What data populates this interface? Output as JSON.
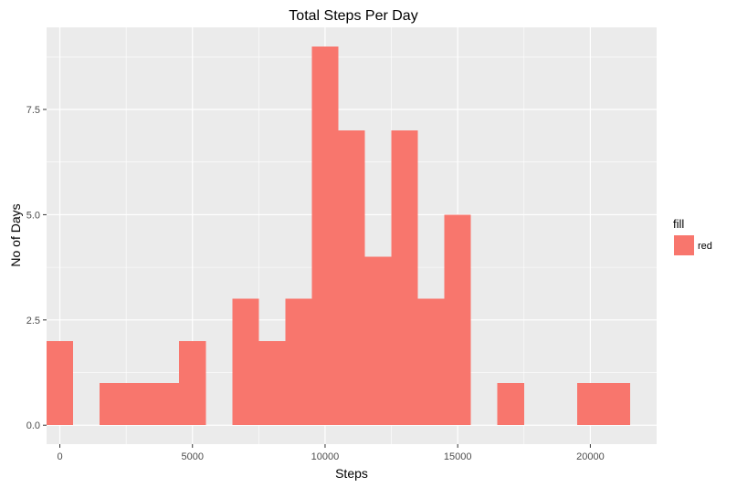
{
  "chart_data": {
    "type": "bar",
    "title": "Total Steps Per Day",
    "xlabel": "Steps",
    "ylabel": "No of Days",
    "bin_width": 1000,
    "bins": [
      {
        "x": 0,
        "count": 2
      },
      {
        "x": 2000,
        "count": 1
      },
      {
        "x": 3000,
        "count": 1
      },
      {
        "x": 4000,
        "count": 1
      },
      {
        "x": 5000,
        "count": 2
      },
      {
        "x": 7000,
        "count": 3
      },
      {
        "x": 8000,
        "count": 2
      },
      {
        "x": 9000,
        "count": 3
      },
      {
        "x": 10000,
        "count": 9
      },
      {
        "x": 11000,
        "count": 7
      },
      {
        "x": 12000,
        "count": 4
      },
      {
        "x": 13000,
        "count": 7
      },
      {
        "x": 14000,
        "count": 3
      },
      {
        "x": 15000,
        "count": 5
      },
      {
        "x": 17000,
        "count": 1
      },
      {
        "x": 20000,
        "count": 1
      },
      {
        "x": 21000,
        "count": 1
      }
    ],
    "xlim": [
      -500,
      22500
    ],
    "ylim": [
      -0.45,
      9.45
    ],
    "x_ticks": [
      0,
      5000,
      10000,
      15000,
      20000
    ],
    "x_tick_labels": [
      "0",
      "5000",
      "10000",
      "15000",
      "20000"
    ],
    "y_ticks": [
      0,
      2.5,
      5,
      7.5
    ],
    "y_tick_labels": [
      "0.0",
      "2.5",
      "5.0",
      "7.5"
    ],
    "grid": true,
    "panel_color": "#EBEBEB",
    "grid_color": "#FFFFFF",
    "bar_color": "#F8766D",
    "legend": {
      "position": "right",
      "title": "fill",
      "entries": [
        {
          "label": "red",
          "color": "#F8766D"
        }
      ]
    }
  }
}
